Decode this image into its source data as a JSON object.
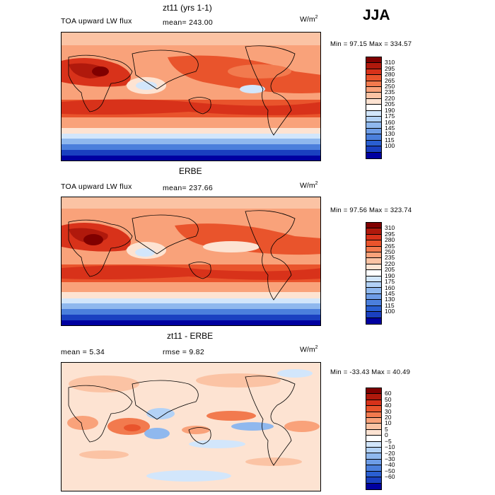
{
  "season": "JJA",
  "panels": [
    {
      "title": "zt11 (yrs 1-1)",
      "variable": "TOA upward LW flux",
      "stat1": "mean= 243.00",
      "stat2": "",
      "units": "W/m",
      "units_exp": "2",
      "minmax": "Min =  97.15 Max = 334.57",
      "colorbar": {
        "colors": [
          "#800000",
          "#b0190c",
          "#d8321a",
          "#e9542c",
          "#f27a4e",
          "#f9a27a",
          "#fbc3a4",
          "#fde3d2",
          "#ffffff",
          "#d2e6fb",
          "#b3d2f6",
          "#8fb8ee",
          "#6d9ce6",
          "#4b7fdc",
          "#2a5fd1",
          "#1a40c0",
          "#0000a0"
        ],
        "ticks": [
          "310",
          "295",
          "280",
          "265",
          "250",
          "235",
          "220",
          "205",
          "190",
          "175",
          "160",
          "145",
          "130",
          "115",
          "100"
        ]
      }
    },
    {
      "title": "ERBE",
      "variable": "TOA upward LW flux",
      "stat1": "mean= 237.66",
      "stat2": "",
      "units": "W/m",
      "units_exp": "2",
      "minmax": "Min =  97.56 Max = 323.74",
      "colorbar": {
        "colors": [
          "#800000",
          "#b0190c",
          "#d8321a",
          "#e9542c",
          "#f27a4e",
          "#f9a27a",
          "#fbc3a4",
          "#fde3d2",
          "#ffffff",
          "#d2e6fb",
          "#b3d2f6",
          "#8fb8ee",
          "#6d9ce6",
          "#4b7fdc",
          "#2a5fd1",
          "#1a40c0",
          "#0000a0"
        ],
        "ticks": [
          "310",
          "295",
          "280",
          "265",
          "250",
          "235",
          "220",
          "205",
          "190",
          "175",
          "160",
          "145",
          "130",
          "115",
          "100"
        ]
      }
    },
    {
      "title": "zt11 - ERBE",
      "variable": "",
      "stat1": "mean =   5.34",
      "stat2": "rmse =   9.82",
      "units": "W/m",
      "units_exp": "2",
      "minmax": "Min = -33.43 Max =  40.49",
      "colorbar": {
        "colors": [
          "#800000",
          "#b0190c",
          "#d8321a",
          "#e9542c",
          "#f27a4e",
          "#f9a27a",
          "#fbc3a4",
          "#fde3d2",
          "#ffffff",
          "#d2e6fb",
          "#b3d2f6",
          "#8fb8ee",
          "#6d9ce6",
          "#4b7fdc",
          "#2a5fd1",
          "#1a40c0",
          "#0000a0"
        ],
        "ticks": [
          "60",
          "50",
          "40",
          "30",
          "20",
          "10",
          "5",
          "0",
          "−5",
          "−10",
          "−20",
          "−30",
          "−40",
          "−50",
          "−60"
        ]
      }
    }
  ]
}
